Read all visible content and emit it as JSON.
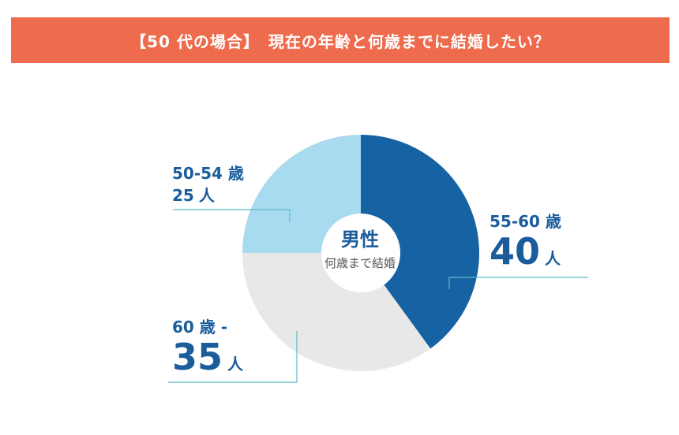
{
  "header": {
    "title": "【50 代の場合】　現在の年齢と何歳までに結婚したい？"
  },
  "chart_data": {
    "type": "pie",
    "center": {
      "title": "男性",
      "subtitle": "何歳まで結婚"
    },
    "slices": [
      {
        "category": "55-60 歳",
        "value": 40,
        "unit": "人",
        "color": "#1762a3"
      },
      {
        "category": "60 歳 -",
        "value": 35,
        "unit": "人",
        "color": "#e8e8e8"
      },
      {
        "category": "50-54 歳",
        "value": 25,
        "unit": "人",
        "color": "#a8daf0"
      }
    ]
  },
  "colors": {
    "banner": "#ee6b4d",
    "label_text": "#1a5d9a",
    "leader_line": "#5bbcc8"
  }
}
